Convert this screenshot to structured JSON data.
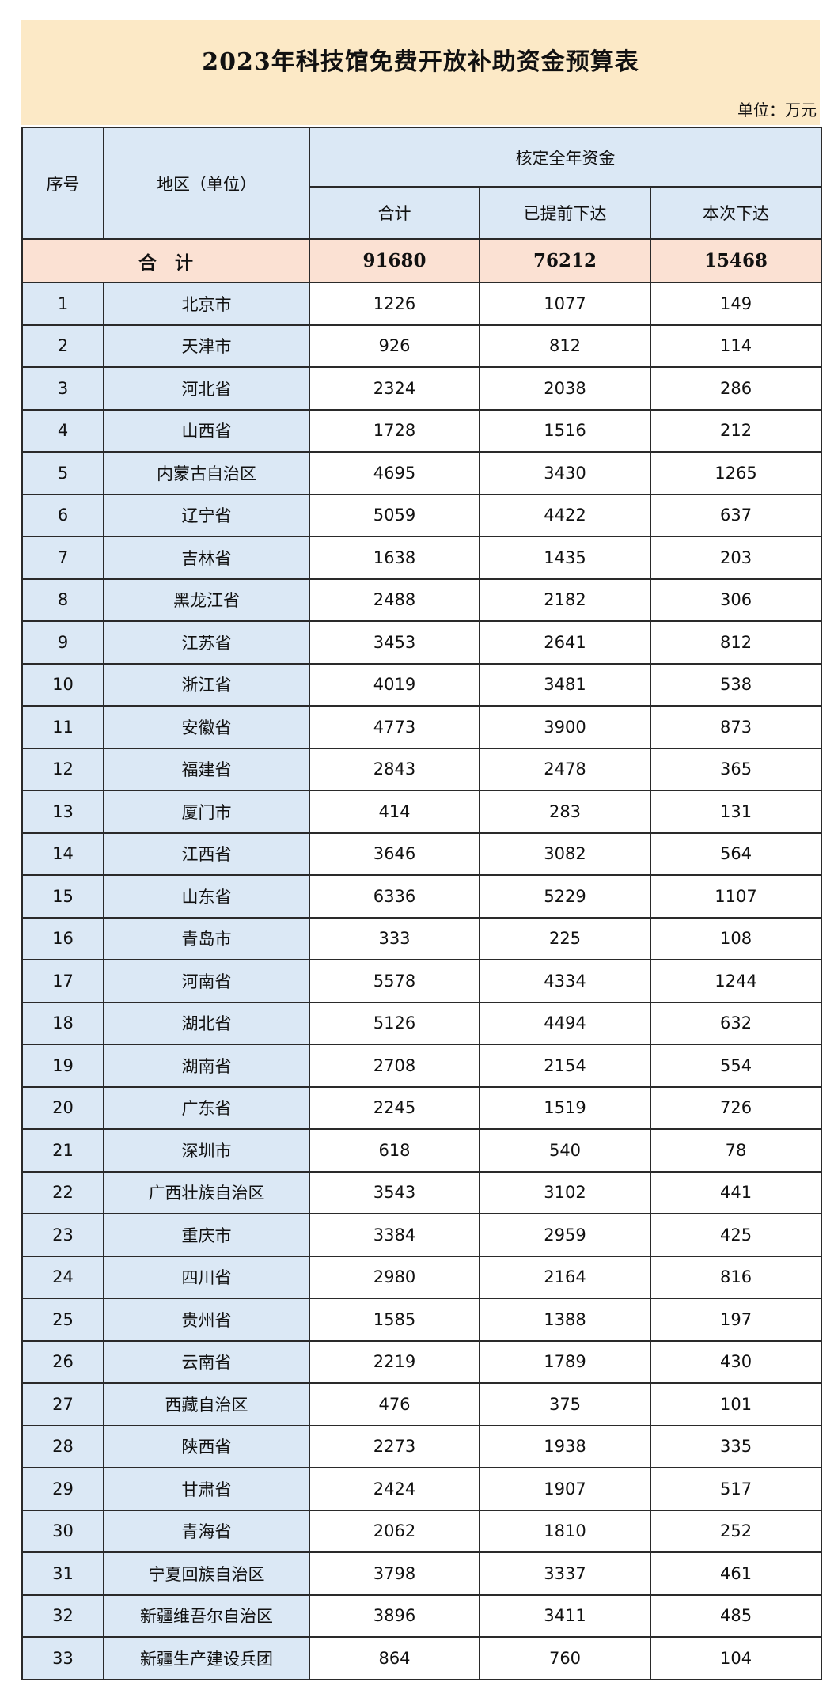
{
  "title": "2023年科技馆免费开放补助资金预算表",
  "unit": "单位：万元",
  "colors": {
    "title_bg": "#fce9c6",
    "header_bg": "#dbe8f5",
    "total_bg": "#fbe1d3"
  },
  "headers": {
    "index": "序号",
    "region": "地区（单位）",
    "group": "核定全年资金",
    "total": "合计",
    "advance": "已提前下达",
    "current": "本次下达"
  },
  "total_row": {
    "label": "合　计",
    "total": "91680",
    "advance": "76212",
    "current": "15468"
  },
  "rows": [
    [
      "1",
      "北京市",
      "1226",
      "1077",
      "149"
    ],
    [
      "2",
      "天津市",
      "926",
      "812",
      "114"
    ],
    [
      "3",
      "河北省",
      "2324",
      "2038",
      "286"
    ],
    [
      "4",
      "山西省",
      "1728",
      "1516",
      "212"
    ],
    [
      "5",
      "内蒙古自治区",
      "4695",
      "3430",
      "1265"
    ],
    [
      "6",
      "辽宁省",
      "5059",
      "4422",
      "637"
    ],
    [
      "7",
      "吉林省",
      "1638",
      "1435",
      "203"
    ],
    [
      "8",
      "黑龙江省",
      "2488",
      "2182",
      "306"
    ],
    [
      "9",
      "江苏省",
      "3453",
      "2641",
      "812"
    ],
    [
      "10",
      "浙江省",
      "4019",
      "3481",
      "538"
    ],
    [
      "11",
      "安徽省",
      "4773",
      "3900",
      "873"
    ],
    [
      "12",
      "福建省",
      "2843",
      "2478",
      "365"
    ],
    [
      "13",
      "厦门市",
      "414",
      "283",
      "131"
    ],
    [
      "14",
      "江西省",
      "3646",
      "3082",
      "564"
    ],
    [
      "15",
      "山东省",
      "6336",
      "5229",
      "1107"
    ],
    [
      "16",
      "青岛市",
      "333",
      "225",
      "108"
    ],
    [
      "17",
      "河南省",
      "5578",
      "4334",
      "1244"
    ],
    [
      "18",
      "湖北省",
      "5126",
      "4494",
      "632"
    ],
    [
      "19",
      "湖南省",
      "2708",
      "2154",
      "554"
    ],
    [
      "20",
      "广东省",
      "2245",
      "1519",
      "726"
    ],
    [
      "21",
      "深圳市",
      "618",
      "540",
      "78"
    ],
    [
      "22",
      "广西壮族自治区",
      "3543",
      "3102",
      "441"
    ],
    [
      "23",
      "重庆市",
      "3384",
      "2959",
      "425"
    ],
    [
      "24",
      "四川省",
      "2980",
      "2164",
      "816"
    ],
    [
      "25",
      "贵州省",
      "1585",
      "1388",
      "197"
    ],
    [
      "26",
      "云南省",
      "2219",
      "1789",
      "430"
    ],
    [
      "27",
      "西藏自治区",
      "476",
      "375",
      "101"
    ],
    [
      "28",
      "陕西省",
      "2273",
      "1938",
      "335"
    ],
    [
      "29",
      "甘肃省",
      "2424",
      "1907",
      "517"
    ],
    [
      "30",
      "青海省",
      "2062",
      "1810",
      "252"
    ],
    [
      "31",
      "宁夏回族自治区",
      "3798",
      "3337",
      "461"
    ],
    [
      "32",
      "新疆维吾尔自治区",
      "3896",
      "3411",
      "485"
    ],
    [
      "33",
      "新疆生产建设兵团",
      "864",
      "760",
      "104"
    ]
  ]
}
